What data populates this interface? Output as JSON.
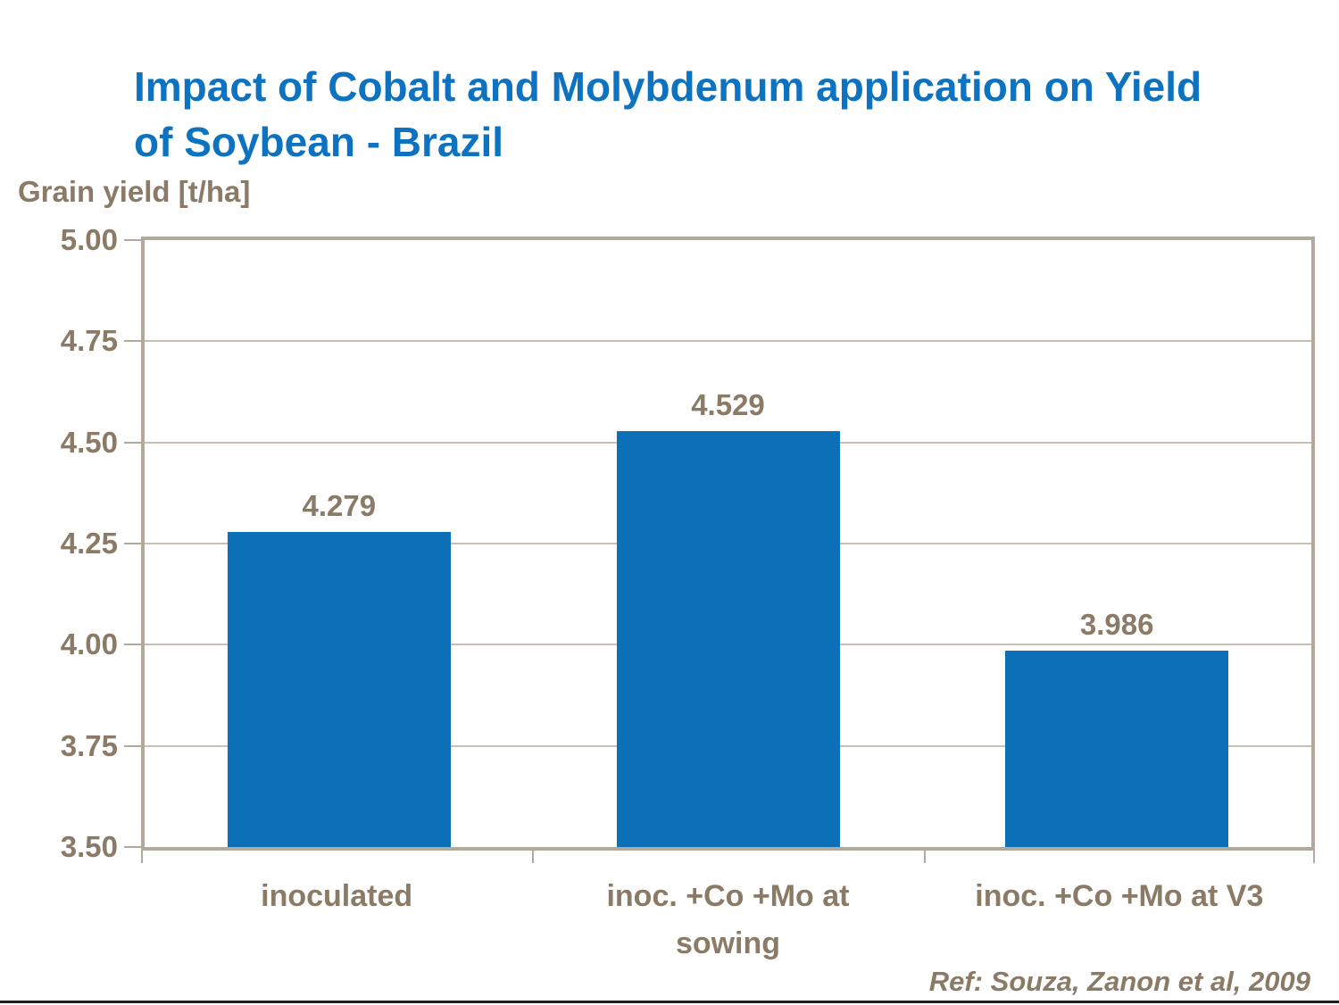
{
  "slide": {
    "title_lines": [
      "Impact of Cobalt and Molybdenum application on Yield",
      "of Soybean - Brazil"
    ],
    "axis_label": "Grain yield [t/ha]",
    "reference": "Ref: Souza, Zanon et al, 2009"
  },
  "colors": {
    "title_blue": "#0d73c0",
    "bar_blue": "#0b70b8",
    "text_brown": "#8a7a66",
    "grid_tan": "#c9c0b4",
    "frame_tan": "#b2a99d",
    "rule_dark": "#1d1d1d"
  },
  "chart_data": {
    "type": "bar",
    "title": "Impact of Cobalt and Molybdenum application on Yield of Soybean - Brazil",
    "ylabel": "Grain yield [t/ha]",
    "xlabel": "",
    "categories": [
      "inoculated",
      "inoc. +Co +Mo at sowing",
      "inoc. +Co +Mo at V3"
    ],
    "categories_lines": [
      [
        "inoculated"
      ],
      [
        "inoc. +Co +Mo at",
        "sowing"
      ],
      [
        "inoc. +Co +Mo at V3"
      ]
    ],
    "values": [
      4.279,
      4.529,
      3.986
    ],
    "value_labels": [
      "4.279",
      "4.529",
      "3.986"
    ],
    "ylim": [
      3.5,
      5.0
    ],
    "yticks": [
      5.0,
      4.75,
      4.5,
      4.25,
      4.0,
      3.75,
      3.5
    ],
    "ytick_labels": [
      "5.00",
      "4.75",
      "4.50",
      "4.25",
      "4.00",
      "3.75",
      "3.50"
    ],
    "grid": true,
    "legend": false,
    "annotation": "Ref: Souza, Zanon et al, 2009"
  }
}
